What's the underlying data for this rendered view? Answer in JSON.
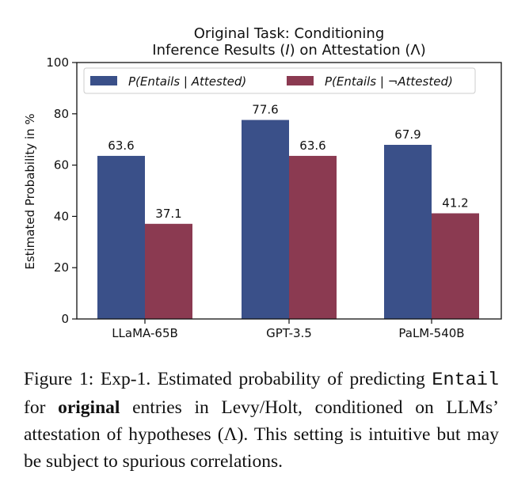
{
  "chart_data": {
    "type": "bar",
    "title_line1": "Original Task: Conditioning",
    "title_line2_pre": "Inference Results (",
    "title_line2_it": "I",
    "title_line2_post": ") on Attestation (Λ)",
    "ylabel": "Estimated Probability in %",
    "xlabel": "",
    "ylim": [
      0,
      100
    ],
    "yticks": [
      "0",
      "20",
      "40",
      "60",
      "80",
      "100"
    ],
    "categories": [
      "LLaMA-65B",
      "GPT-3.5",
      "PaLM-540B"
    ],
    "legend_position": "top",
    "series": [
      {
        "name": "P(Entails | Attested)",
        "legend_prefix": "P",
        "legend_body": "(Entails | Attested)",
        "color": "#3a5089",
        "values": [
          63.6,
          77.6,
          67.9
        ],
        "labels": [
          "63.6",
          "77.6",
          "67.9"
        ]
      },
      {
        "name": "P(Entails | ¬Attested)",
        "legend_prefix": "P",
        "legend_body": "(Entails | ¬Attested)",
        "color": "#8b3a51",
        "values": [
          37.1,
          63.6,
          41.2
        ],
        "labels": [
          "37.1",
          "63.6",
          "41.2"
        ]
      }
    ]
  },
  "caption": {
    "part1": "Figure 1: Exp-1. Estimated probability of predicting ",
    "code": "Entail",
    "part2": " for ",
    "bold": "original",
    "part3": " entries in Levy/Holt, conditioned on LLMs’ attestation of hypotheses (Λ). This setting is intuitive but may be subject to spurious correlations."
  }
}
